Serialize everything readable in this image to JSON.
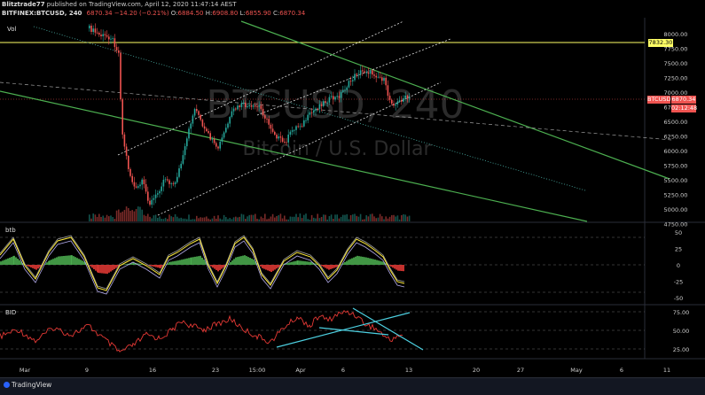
{
  "header": {
    "publish_line_user": "Blitztrade77",
    "publish_line_rest": " published on TradingView.com, April 12, 2020 11:47:14 AEST",
    "symbol": "BITFINEX:BTCUSD, 240",
    "last": "6870.34",
    "change": "−14.20 (−0.21%)",
    "o": "O:",
    "o_val": "6884.50",
    "h": "H:",
    "h_val": "6908.80",
    "l": "L:",
    "l_val": "6855.90",
    "c": "C:",
    "c_val": "6870.34"
  },
  "watermark": {
    "ticker": "BTCUSD, 240",
    "name": "Bitcoin / U.S. Dollar"
  },
  "panes": {
    "main_label": "Vol",
    "osc1_label": "btb",
    "osc2_label": "BID"
  },
  "price_axis": {
    "ticks": [
      "8000.00",
      "7750.00",
      "7500.00",
      "7250.00",
      "7000.00",
      "6750.00",
      "6500.00",
      "6250.00",
      "6000.00",
      "5750.00",
      "5500.00",
      "5250.00",
      "5000.00",
      "4750.00"
    ],
    "level_tag": "7832.30",
    "symbol_tag": "BTCUSD",
    "price_tag": "6870.34",
    "timer_tag": "02:12:48"
  },
  "osc1_axis": {
    "ticks": [
      "50",
      "25",
      "0",
      "-25",
      "-50"
    ]
  },
  "osc2_axis": {
    "ticks": [
      "75.00",
      "50.00",
      "25.00"
    ]
  },
  "time_axis": {
    "ticks": [
      "Mar",
      "9",
      "16",
      "23",
      "15:00",
      "Apr",
      "6",
      "13",
      "20",
      "27",
      "May",
      "6",
      "11"
    ]
  },
  "footer": {
    "brand": "TradingView"
  },
  "colors": {
    "up": "#26a69a",
    "down": "#ef5350",
    "trend_green": "#4caf50",
    "level_yellow": "#ffff66",
    "channel_dotted": "#e0e0e0",
    "osc_yellow": "#ffeb3b",
    "osc2_red": "#e53935",
    "cyan_line": "#4dd0e1"
  }
}
